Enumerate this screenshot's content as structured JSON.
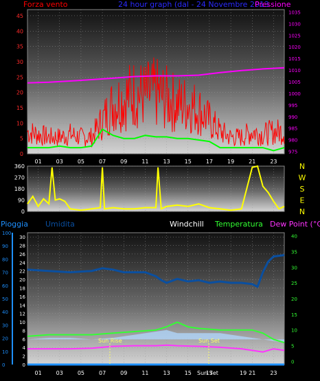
{
  "header": {
    "left_title": "Forza vento",
    "center_title": "24 hour graph (dal - 24 Novembre 2013",
    "right_title": "Pressione"
  },
  "bottom_header": {
    "rain": "Pioggia",
    "humidity": "Umidita",
    "windchill": "Windchill",
    "temperature": "Temperatura",
    "dewpoint": "Dew Point (°C)"
  },
  "x_ticks": [
    "01",
    "03",
    "05",
    "07",
    "09",
    "11",
    "13",
    "15",
    "17",
    "19",
    "21",
    "23"
  ],
  "compass": [
    "N",
    "W",
    "S",
    "E",
    "N"
  ],
  "annotations": {
    "sunrise": "Sun Rise",
    "sunset": "Sun Set"
  },
  "colors": {
    "wind_speed": "#ff0000",
    "wind_gust": "#ff0000",
    "wind_avg": "#00ff00",
    "pressure": "#ff00ff",
    "direction": "#ffff00",
    "humidity": "#0a4fa0",
    "windchill": "#b0d8ff",
    "temperature": "#33ff33",
    "dewpoint": "#ff33ff",
    "rain": "#1e90ff"
  },
  "chart_data": [
    {
      "type": "line",
      "xlim": [
        0,
        24
      ],
      "y_left": {
        "ticks": [
          0,
          5,
          10,
          15,
          20,
          25,
          30,
          35,
          40,
          45
        ],
        "ylim": [
          0,
          47
        ]
      },
      "y_right": {
        "ticks": [
          975,
          980,
          985,
          990,
          995,
          1000,
          1005,
          1010,
          1015,
          1020,
          1025,
          1030,
          1035
        ],
        "ylim": [
          974,
          1036
        ]
      },
      "series": [
        {
          "name": "Forza vento",
          "x": [
            0,
            1,
            2,
            3,
            4,
            5,
            6,
            7,
            8,
            9,
            10,
            11,
            12,
            13,
            14,
            15,
            16,
            17,
            18,
            19,
            20,
            21,
            22,
            23,
            24
          ],
          "values": [
            8,
            7,
            6,
            6,
            7,
            6,
            6,
            12,
            18,
            20,
            22,
            21,
            22,
            20,
            18,
            18,
            16,
            12,
            8,
            6,
            6,
            8,
            7,
            8,
            8
          ]
        },
        {
          "name": "",
          "x": [
            0,
            1,
            2,
            3,
            4,
            5,
            6,
            7,
            8,
            9,
            10,
            11,
            12,
            13,
            14,
            15,
            16,
            17,
            18,
            19,
            20,
            21,
            22,
            23,
            24
          ],
          "values": [
            2,
            2,
            2,
            2.5,
            2,
            2,
            2.5,
            8,
            6,
            5,
            5,
            6,
            5.5,
            5.5,
            5,
            5,
            4.5,
            4,
            2,
            2,
            2,
            2,
            2,
            1,
            2
          ]
        },
        {
          "name": "Pressione",
          "x": [
            0,
            2,
            4,
            6,
            8,
            10,
            12,
            14,
            16,
            18,
            20,
            22,
            24
          ],
          "values": [
            1004.5,
            1004.8,
            1005.3,
            1005.9,
            1006.5,
            1007.2,
            1007.5,
            1007.5,
            1007.8,
            1008.9,
            1009.8,
            1010.5,
            1011.0
          ]
        }
      ]
    },
    {
      "type": "line",
      "xlim": [
        0,
        24
      ],
      "ylim": [
        0,
        360
      ],
      "y_ticks": [
        0,
        90,
        180,
        270,
        360
      ],
      "series": [
        {
          "name": "",
          "x": [
            0,
            0.5,
            1,
            1.5,
            2,
            2.3,
            2.6,
            3,
            3.5,
            4,
            5,
            6,
            6.8,
            7,
            7.2,
            8,
            9,
            10,
            11,
            12,
            12.2,
            12.5,
            13,
            14,
            15,
            16,
            17,
            18,
            19,
            20,
            21,
            21.5,
            22,
            22.5,
            23,
            23.5,
            24
          ],
          "values": [
            60,
            120,
            40,
            100,
            60,
            350,
            90,
            100,
            80,
            20,
            10,
            20,
            30,
            350,
            20,
            30,
            20,
            20,
            30,
            30,
            350,
            20,
            40,
            50,
            40,
            60,
            30,
            20,
            10,
            20,
            350,
            360,
            200,
            150,
            80,
            20,
            40
          ]
        }
      ]
    },
    {
      "type": "line",
      "xlim": [
        0,
        24
      ],
      "y_left": {
        "ticks": [
          0,
          10,
          20,
          30,
          40,
          50,
          60,
          70,
          80,
          90,
          100
        ],
        "ylim": [
          0,
          100
        ]
      },
      "y_mid": {
        "ticks": [
          0,
          2,
          4,
          6,
          8,
          10,
          12,
          14,
          16,
          18,
          20,
          22,
          24,
          26,
          28,
          30
        ],
        "ylim": [
          0,
          31
        ]
      },
      "y_right": {
        "ticks": [
          0,
          5,
          10,
          15,
          20,
          25,
          30,
          35,
          40
        ],
        "ylim": [
          -1,
          41
        ]
      },
      "series": [
        {
          "name": "Umidita",
          "x": [
            0,
            2,
            4,
            6,
            7,
            8,
            9,
            10,
            11,
            12,
            12.5,
            13,
            14,
            15,
            16,
            17,
            18,
            19,
            20,
            21,
            21.5,
            22,
            22.5,
            23,
            24
          ],
          "values": [
            72,
            71,
            70,
            71,
            73,
            72,
            70,
            70,
            70,
            67,
            64,
            62,
            65,
            63,
            64,
            62,
            63,
            62,
            62,
            61,
            59,
            70,
            78,
            82,
            83
          ]
        },
        {
          "name": "Windchill",
          "x": [
            0,
            2,
            4,
            6,
            8,
            10,
            12,
            13,
            14,
            16,
            18,
            20,
            22,
            24
          ],
          "values": [
            7,
            7.5,
            7.5,
            7,
            7.5,
            8.5,
            9.5,
            10,
            9,
            9,
            9,
            8,
            7,
            6
          ]
        },
        {
          "name": "Temperatura",
          "x": [
            0,
            2,
            4,
            6,
            8,
            10,
            12,
            13,
            14,
            15,
            16,
            18,
            20,
            21,
            22,
            23,
            24
          ],
          "values": [
            8,
            8.5,
            8.5,
            8.5,
            9,
            9.5,
            10,
            11,
            12.5,
            11,
            10.5,
            10,
            10,
            10,
            9,
            7,
            6
          ]
        },
        {
          "name": "Dew Point (°C)",
          "x": [
            0,
            2,
            4,
            6,
            8,
            10,
            12,
            13,
            14,
            16,
            18,
            20,
            21,
            22,
            23,
            24
          ],
          "values": [
            4,
            4,
            4,
            4.2,
            4.8,
            5,
            5,
            5.2,
            5,
            4.8,
            4.5,
            4,
            3.5,
            3,
            4,
            3.5
          ]
        },
        {
          "name": "Pioggia",
          "x": [
            0,
            24
          ],
          "values": [
            0,
            0
          ]
        }
      ]
    }
  ]
}
